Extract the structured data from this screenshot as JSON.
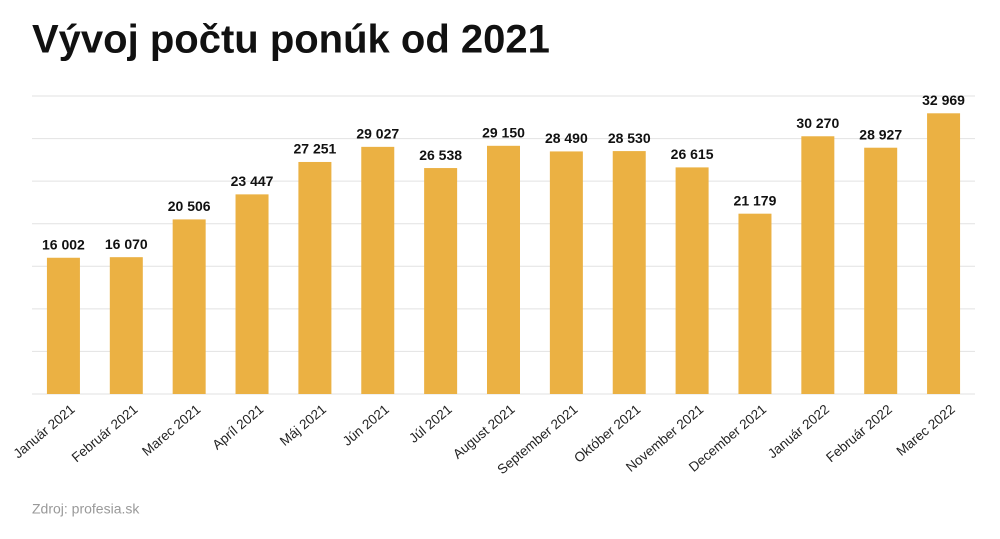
{
  "chart_data": {
    "type": "bar",
    "title": "Vývoj počtu ponúk od 2021",
    "categories": [
      "Január 2021",
      "Február 2021",
      "Marec 2021",
      "Apríl 2021",
      "Máj 2021",
      "Jún 2021",
      "Júl 2021",
      "August 2021",
      "September 2021",
      "Október 2021",
      "November 2021",
      "December 2021",
      "Január 2022",
      "Február 2022",
      "Marec 2022"
    ],
    "values": [
      16002,
      16070,
      20506,
      23447,
      27251,
      29027,
      26538,
      29150,
      28490,
      28530,
      26615,
      21179,
      30270,
      28927,
      32969
    ],
    "value_labels": [
      "16 002",
      "16 070",
      "20 506",
      "23 447",
      "27 251",
      "29 027",
      "26 538",
      "29 150",
      "28 490",
      "28 530",
      "26 615",
      "21 179",
      "30 270",
      "28 927",
      "32 969"
    ],
    "color": "#ebb143",
    "ylim": [
      0,
      35000
    ],
    "yticks": [
      0,
      5000,
      10000,
      15000,
      20000,
      25000,
      30000,
      35000
    ],
    "grid": true,
    "source": "Zdroj: profesia.sk"
  }
}
